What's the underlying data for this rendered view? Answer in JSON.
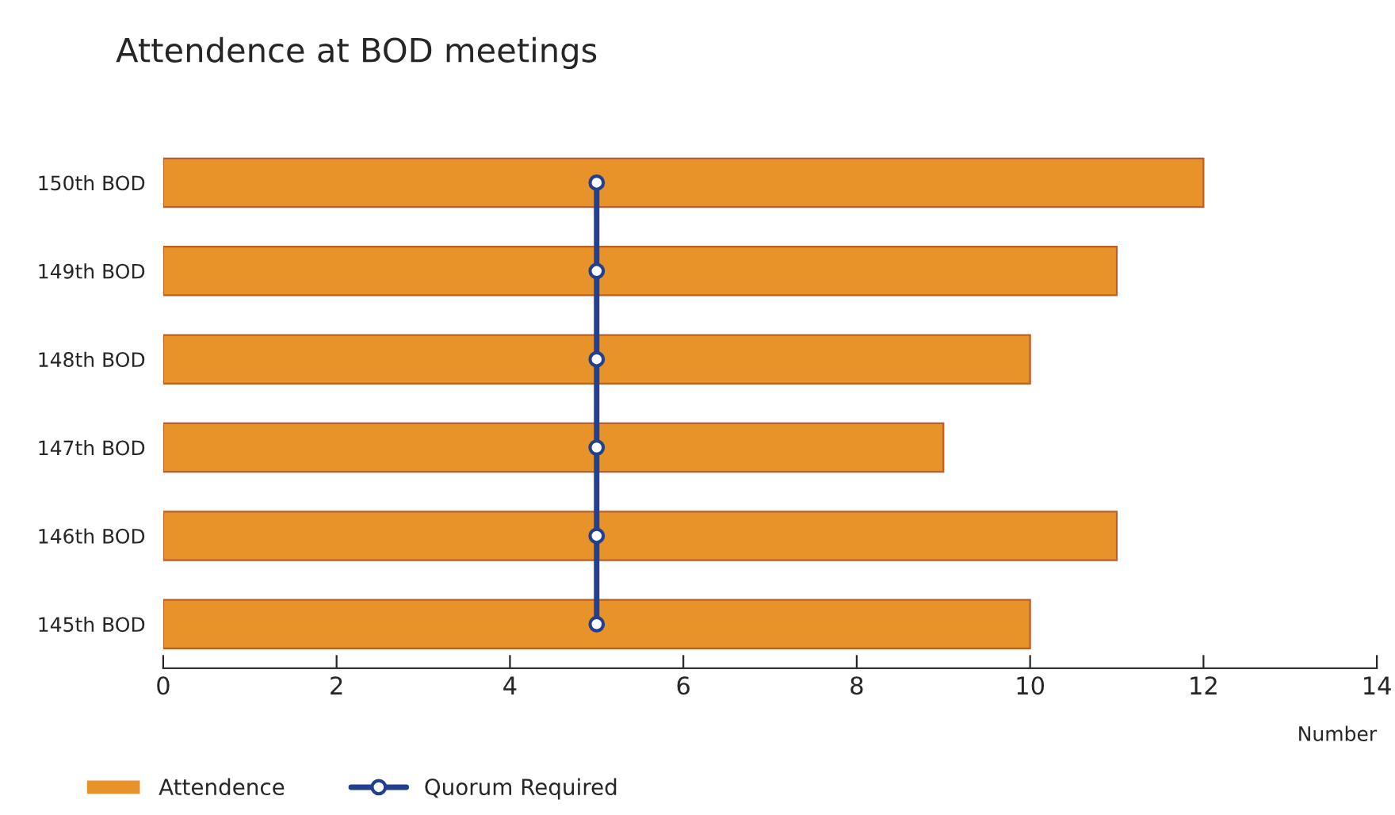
{
  "chart_data": {
    "type": "bar",
    "orientation": "horizontal",
    "title": "Attendence at BOD meetings",
    "xlabel": "Number",
    "categories": [
      "150th BOD",
      "149th BOD",
      "148th BOD",
      "147th BOD",
      "146th BOD",
      "145th BOD"
    ],
    "series": [
      {
        "name": "Attendence",
        "color": "#e8922a",
        "values": [
          12,
          11,
          10,
          9,
          11,
          10
        ]
      },
      {
        "name": "Quorum Required",
        "type": "line",
        "color": "#233f8f",
        "marker": "circle",
        "values": [
          5,
          5,
          5,
          5,
          5,
          5
        ]
      }
    ],
    "xlim": [
      0,
      14
    ],
    "xticks": [
      0,
      2,
      4,
      6,
      8,
      10,
      12,
      14
    ],
    "grid": false,
    "legend": "bottom left"
  }
}
